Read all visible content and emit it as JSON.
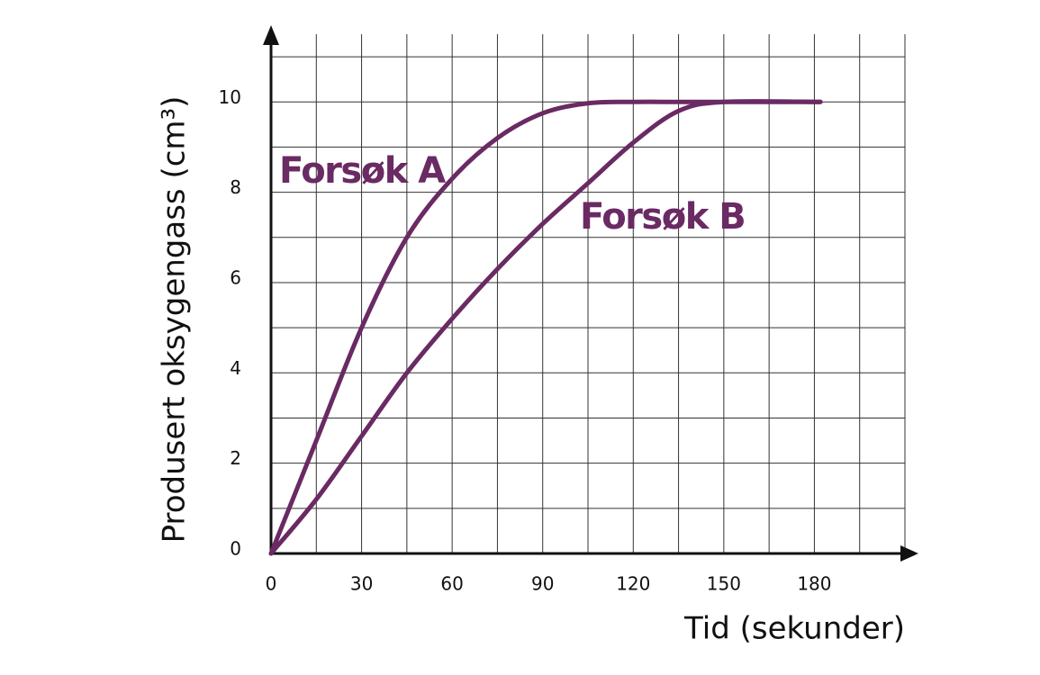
{
  "chart_data": {
    "type": "line",
    "xlabel": "Tid (sekunder)",
    "ylabel": "Produsert oksygengass (cm³)",
    "x": [
      0,
      15,
      30,
      45,
      60,
      75,
      90,
      105,
      120,
      135,
      150,
      182
    ],
    "series": [
      {
        "name": "Forsøk A",
        "color": "#6a2a63",
        "values": [
          0,
          2.5,
          5.0,
          7.0,
          8.3,
          9.2,
          9.75,
          9.97,
          10,
          10,
          10,
          10
        ]
      },
      {
        "name": "Forsøk B",
        "color": "#6a2a63",
        "values": [
          0,
          1.2,
          2.6,
          4.0,
          5.2,
          6.3,
          7.3,
          8.2,
          9.1,
          9.8,
          10,
          10
        ]
      }
    ],
    "xlim": [
      0,
      210
    ],
    "ylim": [
      0,
      11.5
    ],
    "xticks": [
      0,
      30,
      60,
      90,
      120,
      150,
      180
    ],
    "yticks": [
      0,
      2,
      4,
      6,
      8,
      10
    ],
    "x_gridlines": [
      15,
      30,
      45,
      60,
      75,
      90,
      105,
      120,
      135,
      150,
      165,
      180,
      195,
      210
    ],
    "y_gridlines": [
      1,
      2,
      3,
      4,
      5,
      6,
      7,
      8,
      9,
      10,
      11
    ],
    "grid": true
  }
}
